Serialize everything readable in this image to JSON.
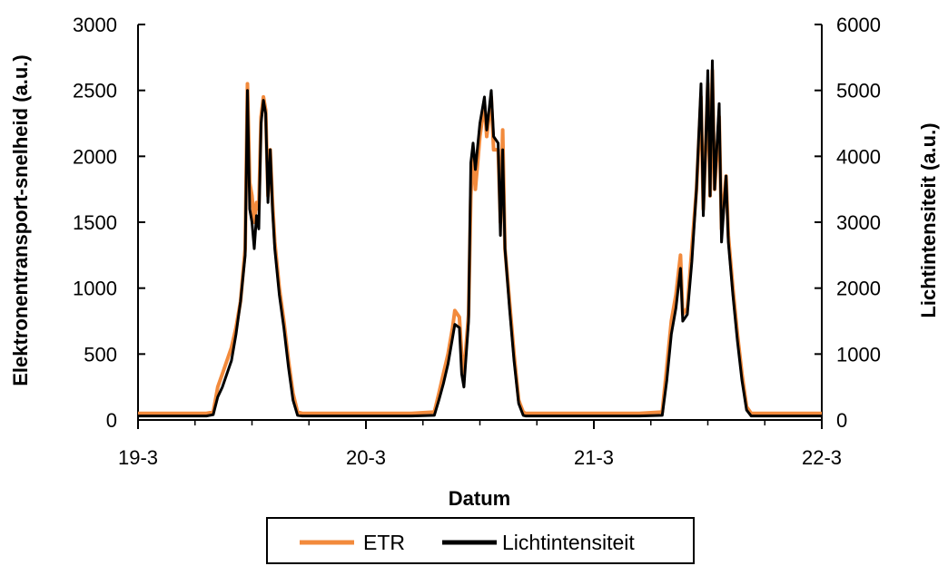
{
  "chart_data": {
    "type": "line",
    "xlabel": "Datum",
    "ylabel_left": "Elektronentransport-snelheid (a.u.)",
    "ylabel_right": "Lichtintensiteit (a.u.)",
    "x_ticks": [
      "19-3",
      "20-3",
      "21-3",
      "22-3"
    ],
    "xlim": [
      0,
      3
    ],
    "ylim_left": [
      0,
      3000
    ],
    "ylim_right": [
      0,
      6000
    ],
    "y_ticks_left": [
      "0",
      "500",
      "1000",
      "1500",
      "2000",
      "2500",
      "3000"
    ],
    "y_ticks_right": [
      "0",
      "1000",
      "2000",
      "3000",
      "4000",
      "5000",
      "6000"
    ],
    "grid": false,
    "legend_position": "bottom-center",
    "series": [
      {
        "name": "ETR",
        "axis": "left",
        "color": "#f28a3c",
        "points": [
          [
            0.0,
            50
          ],
          [
            0.1,
            50
          ],
          [
            0.2,
            50
          ],
          [
            0.3,
            50
          ],
          [
            0.33,
            60
          ],
          [
            0.35,
            250
          ],
          [
            0.37,
            350
          ],
          [
            0.39,
            450
          ],
          [
            0.41,
            550
          ],
          [
            0.43,
            700
          ],
          [
            0.45,
            900
          ],
          [
            0.47,
            1300
          ],
          [
            0.48,
            2550
          ],
          [
            0.49,
            1800
          ],
          [
            0.5,
            1700
          ],
          [
            0.51,
            1500
          ],
          [
            0.52,
            1650
          ],
          [
            0.53,
            1600
          ],
          [
            0.54,
            2300
          ],
          [
            0.55,
            2450
          ],
          [
            0.56,
            2350
          ],
          [
            0.57,
            1700
          ],
          [
            0.58,
            2050
          ],
          [
            0.59,
            1650
          ],
          [
            0.6,
            1350
          ],
          [
            0.62,
            1000
          ],
          [
            0.64,
            750
          ],
          [
            0.66,
            450
          ],
          [
            0.68,
            200
          ],
          [
            0.7,
            60
          ],
          [
            0.72,
            50
          ],
          [
            0.8,
            50
          ],
          [
            0.9,
            50
          ],
          [
            1.0,
            50
          ],
          [
            1.1,
            50
          ],
          [
            1.2,
            50
          ],
          [
            1.3,
            60
          ],
          [
            1.32,
            200
          ],
          [
            1.34,
            350
          ],
          [
            1.36,
            500
          ],
          [
            1.38,
            700
          ],
          [
            1.39,
            830
          ],
          [
            1.41,
            780
          ],
          [
            1.42,
            500
          ],
          [
            1.43,
            350
          ],
          [
            1.45,
            800
          ],
          [
            1.46,
            1700
          ],
          [
            1.47,
            2050
          ],
          [
            1.48,
            1750
          ],
          [
            1.5,
            2150
          ],
          [
            1.52,
            2400
          ],
          [
            1.53,
            2150
          ],
          [
            1.55,
            2450
          ],
          [
            1.56,
            2050
          ],
          [
            1.58,
            2050
          ],
          [
            1.59,
            1500
          ],
          [
            1.6,
            2200
          ],
          [
            1.61,
            1300
          ],
          [
            1.63,
            900
          ],
          [
            1.65,
            500
          ],
          [
            1.67,
            150
          ],
          [
            1.69,
            60
          ],
          [
            1.7,
            50
          ],
          [
            1.8,
            50
          ],
          [
            1.9,
            50
          ],
          [
            2.0,
            50
          ],
          [
            2.1,
            50
          ],
          [
            2.2,
            50
          ],
          [
            2.3,
            60
          ],
          [
            2.32,
            400
          ],
          [
            2.34,
            750
          ],
          [
            2.36,
            950
          ],
          [
            2.38,
            1250
          ],
          [
            2.39,
            800
          ],
          [
            2.41,
            850
          ],
          [
            2.43,
            1300
          ],
          [
            2.45,
            1750
          ],
          [
            2.47,
            2450
          ],
          [
            2.48,
            1600
          ],
          [
            2.49,
            2050
          ],
          [
            2.5,
            2550
          ],
          [
            2.51,
            1700
          ],
          [
            2.52,
            2650
          ],
          [
            2.53,
            1750
          ],
          [
            2.55,
            2300
          ],
          [
            2.56,
            1450
          ],
          [
            2.58,
            1850
          ],
          [
            2.59,
            1400
          ],
          [
            2.61,
            1000
          ],
          [
            2.63,
            650
          ],
          [
            2.65,
            350
          ],
          [
            2.67,
            100
          ],
          [
            2.69,
            50
          ],
          [
            2.8,
            50
          ],
          [
            2.9,
            50
          ],
          [
            3.0,
            50
          ]
        ]
      },
      {
        "name": "Lichtintensiteit",
        "axis": "right",
        "color": "#000000",
        "points": [
          [
            0.0,
            60
          ],
          [
            0.1,
            60
          ],
          [
            0.2,
            60
          ],
          [
            0.3,
            60
          ],
          [
            0.33,
            80
          ],
          [
            0.35,
            350
          ],
          [
            0.37,
            500
          ],
          [
            0.39,
            700
          ],
          [
            0.41,
            900
          ],
          [
            0.43,
            1300
          ],
          [
            0.45,
            1800
          ],
          [
            0.47,
            2500
          ],
          [
            0.48,
            5000
          ],
          [
            0.49,
            3200
          ],
          [
            0.5,
            3000
          ],
          [
            0.51,
            2600
          ],
          [
            0.52,
            3100
          ],
          [
            0.53,
            2900
          ],
          [
            0.54,
            4500
          ],
          [
            0.55,
            4850
          ],
          [
            0.56,
            4650
          ],
          [
            0.57,
            3300
          ],
          [
            0.58,
            4100
          ],
          [
            0.59,
            3200
          ],
          [
            0.6,
            2600
          ],
          [
            0.62,
            1900
          ],
          [
            0.64,
            1400
          ],
          [
            0.66,
            800
          ],
          [
            0.68,
            300
          ],
          [
            0.7,
            70
          ],
          [
            0.72,
            60
          ],
          [
            0.8,
            60
          ],
          [
            0.9,
            60
          ],
          [
            1.0,
            60
          ],
          [
            1.1,
            60
          ],
          [
            1.2,
            60
          ],
          [
            1.3,
            70
          ],
          [
            1.32,
            300
          ],
          [
            1.34,
            550
          ],
          [
            1.36,
            850
          ],
          [
            1.38,
            1250
          ],
          [
            1.39,
            1450
          ],
          [
            1.41,
            1400
          ],
          [
            1.42,
            700
          ],
          [
            1.43,
            500
          ],
          [
            1.45,
            1500
          ],
          [
            1.46,
            3900
          ],
          [
            1.47,
            4200
          ],
          [
            1.48,
            3800
          ],
          [
            1.5,
            4500
          ],
          [
            1.52,
            4900
          ],
          [
            1.53,
            4400
          ],
          [
            1.55,
            5000
          ],
          [
            1.56,
            4300
          ],
          [
            1.58,
            4200
          ],
          [
            1.59,
            2800
          ],
          [
            1.6,
            4100
          ],
          [
            1.61,
            2600
          ],
          [
            1.63,
            1700
          ],
          [
            1.65,
            900
          ],
          [
            1.67,
            250
          ],
          [
            1.69,
            70
          ],
          [
            1.7,
            60
          ],
          [
            1.8,
            60
          ],
          [
            1.9,
            60
          ],
          [
            2.0,
            60
          ],
          [
            2.1,
            60
          ],
          [
            2.2,
            60
          ],
          [
            2.3,
            70
          ],
          [
            2.32,
            600
          ],
          [
            2.34,
            1300
          ],
          [
            2.36,
            1700
          ],
          [
            2.38,
            2300
          ],
          [
            2.39,
            1500
          ],
          [
            2.41,
            1600
          ],
          [
            2.43,
            2400
          ],
          [
            2.45,
            3500
          ],
          [
            2.47,
            5100
          ],
          [
            2.48,
            3100
          ],
          [
            2.49,
            4100
          ],
          [
            2.5,
            5300
          ],
          [
            2.51,
            3400
          ],
          [
            2.52,
            5450
          ],
          [
            2.53,
            3500
          ],
          [
            2.55,
            4800
          ],
          [
            2.56,
            2700
          ],
          [
            2.58,
            3700
          ],
          [
            2.59,
            2700
          ],
          [
            2.61,
            1900
          ],
          [
            2.63,
            1200
          ],
          [
            2.65,
            600
          ],
          [
            2.67,
            150
          ],
          [
            2.69,
            60
          ],
          [
            2.8,
            60
          ],
          [
            2.9,
            60
          ],
          [
            3.0,
            60
          ]
        ]
      }
    ]
  }
}
